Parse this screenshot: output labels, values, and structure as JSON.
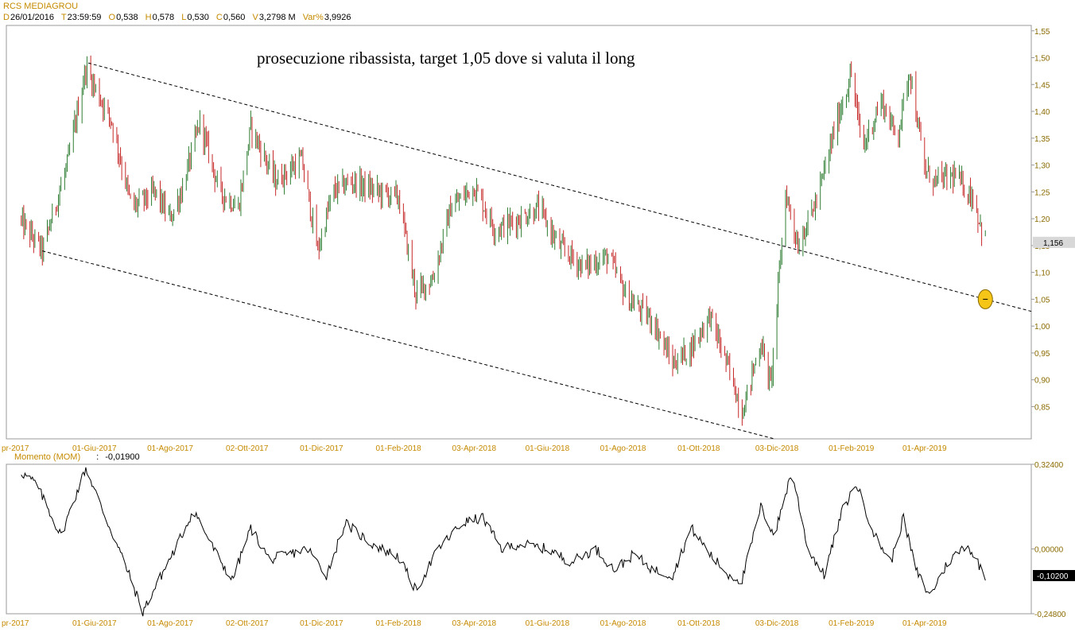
{
  "header": {
    "title": "RCS MEDIAGROU",
    "quote": [
      {
        "key": "D",
        "value": "26/01/2016"
      },
      {
        "key": "T",
        "value": "23:59:59"
      },
      {
        "key": "O",
        "value": "0,538"
      },
      {
        "key": "H",
        "value": "0,578"
      },
      {
        "key": "L",
        "value": "0,530"
      },
      {
        "key": "C",
        "value": "0,560"
      },
      {
        "key": "V",
        "value": "3,2798 M"
      },
      {
        "key": "Var%",
        "value": "3,9926"
      }
    ]
  },
  "momentum": {
    "name": "Momento (MOM)",
    "separator": ":",
    "value": "-0,01900"
  },
  "colors": {
    "up_bar": "#2e7d32",
    "down_bar": "#c62828",
    "axis_text": "#8a6a00",
    "date_text": "#c58a00",
    "target_marker": "#f5c518"
  },
  "chart_data": [
    {
      "type": "ohlc",
      "title": "",
      "annotation": "prosecuzione ribassista, target 1,05 dove si valuta il long",
      "x_tick_labels": [
        "pr-2017",
        "01-Giu-2017",
        "01-Ago-2017",
        "02-Ott-2017",
        "01-Dic-2017",
        "01-Feb-2018",
        "03-Apr-2018",
        "01-Giu-2018",
        "01-Ago-2018",
        "01-Ott-2018",
        "03-Dic-2018",
        "01-Feb-2019",
        "01-Apr-2019"
      ],
      "y_tick_labels": [
        "1,55",
        "1,50",
        "1,45",
        "1,40",
        "1,35",
        "1,30",
        "1,25",
        "1,20",
        "1,15",
        "1,10",
        "1,05",
        "1,00",
        "0,95",
        "0,90",
        "0,85"
      ],
      "ylim": [
        0.79,
        1.56
      ],
      "last_value_label": "1,156",
      "closes_approx": {
        "dates": [
          "2017-04-01",
          "2017-04-20",
          "2017-05-10",
          "2017-05-25",
          "2017-06-15",
          "2017-07-01",
          "2017-07-20",
          "2017-08-01",
          "2017-08-10",
          "2017-08-25",
          "2017-09-10",
          "2017-09-25",
          "2017-10-05",
          "2017-10-25",
          "2017-11-15",
          "2017-11-28",
          "2017-12-10",
          "2017-12-25",
          "2018-01-15",
          "2018-02-01",
          "2018-02-15",
          "2018-03-01",
          "2018-03-15",
          "2018-04-03",
          "2018-04-20",
          "2018-05-10",
          "2018-05-25",
          "2018-06-10",
          "2018-06-30",
          "2018-07-20",
          "2018-08-05",
          "2018-08-25",
          "2018-09-10",
          "2018-09-25",
          "2018-10-10",
          "2018-10-25",
          "2018-11-05",
          "2018-11-20",
          "2018-11-28",
          "2018-12-10",
          "2018-12-20",
          "2019-01-05",
          "2019-01-20",
          "2019-02-01",
          "2019-02-10",
          "2019-02-25",
          "2019-03-10",
          "2019-03-20",
          "2019-04-01",
          "2019-04-10",
          "2019-04-25",
          "2019-05-10",
          "2019-05-20"
        ],
        "values": [
          1.2,
          1.14,
          1.3,
          1.48,
          1.38,
          1.22,
          1.25,
          1.2,
          1.25,
          1.38,
          1.25,
          1.22,
          1.37,
          1.27,
          1.31,
          1.14,
          1.25,
          1.27,
          1.25,
          1.24,
          1.06,
          1.09,
          1.22,
          1.26,
          1.18,
          1.2,
          1.22,
          1.15,
          1.11,
          1.13,
          1.05,
          1.01,
          0.93,
          0.96,
          1.02,
          0.92,
          0.84,
          0.97,
          0.89,
          1.25,
          1.15,
          1.24,
          1.38,
          1.47,
          1.33,
          1.42,
          1.35,
          1.48,
          1.29,
          1.27,
          1.28,
          1.24,
          1.156
        ]
      },
      "trendlines": [
        {
          "name": "upper channel",
          "from": {
            "date": "2017-05-27",
            "value": 1.49
          },
          "to": {
            "date": "2019-05-20",
            "value": 1.05
          }
        },
        {
          "name": "lower channel",
          "from": {
            "date": "2017-04-20",
            "value": 1.14
          },
          "to": {
            "date": "2018-12-01",
            "value": 0.79
          }
        }
      ],
      "target_marker": {
        "date": "2019-05-20",
        "value": 1.05
      }
    },
    {
      "type": "line",
      "title": "",
      "series_name": "Momento (MOM)",
      "y_tick_labels": [
        "0,32400",
        "0,00000",
        "-0,24800"
      ],
      "ylim": [
        -0.248,
        0.324
      ],
      "last_value_label": "-0,10200",
      "x_tick_labels": [
        "pr-2017",
        "01-Giu-2017",
        "01-Ago-2017",
        "02-Ott-2017",
        "01-Dic-2017",
        "01-Feb-2018",
        "03-Apr-2018",
        "01-Giu-2018",
        "01-Ago-2018",
        "01-Ott-2018",
        "03-Dic-2018",
        "01-Feb-2019",
        "01-Apr-2019"
      ],
      "values_approx": {
        "dates": [
          "2017-04-01",
          "2017-04-15",
          "2017-05-05",
          "2017-05-25",
          "2017-06-10",
          "2017-06-25",
          "2017-07-10",
          "2017-07-25",
          "2017-08-05",
          "2017-08-20",
          "2017-09-05",
          "2017-09-20",
          "2017-10-05",
          "2017-10-20",
          "2017-11-05",
          "2017-11-20",
          "2017-12-05",
          "2017-12-20",
          "2018-01-10",
          "2018-02-01",
          "2018-02-15",
          "2018-03-05",
          "2018-03-25",
          "2018-04-10",
          "2018-04-25",
          "2018-05-10",
          "2018-06-01",
          "2018-06-20",
          "2018-07-10",
          "2018-07-25",
          "2018-08-10",
          "2018-08-25",
          "2018-09-10",
          "2018-09-25",
          "2018-10-10",
          "2018-10-25",
          "2018-11-05",
          "2018-11-20",
          "2018-12-01",
          "2018-12-15",
          "2018-12-28",
          "2019-01-10",
          "2019-01-25",
          "2019-02-05",
          "2019-02-20",
          "2019-03-05",
          "2019-03-15",
          "2019-03-25",
          "2019-04-05",
          "2019-04-20",
          "2019-05-05",
          "2019-05-20"
        ],
        "values": [
          0.3,
          0.25,
          0.05,
          0.31,
          0.12,
          -0.05,
          -0.24,
          -0.1,
          0.0,
          0.15,
          0.0,
          -0.12,
          0.08,
          -0.04,
          -0.02,
          0.0,
          -0.1,
          0.1,
          0.02,
          -0.03,
          -0.16,
          0.0,
          0.1,
          0.12,
          0.0,
          0.02,
          0.0,
          -0.05,
          0.0,
          -0.08,
          -0.02,
          -0.08,
          -0.1,
          0.08,
          -0.02,
          -0.1,
          -0.12,
          0.16,
          0.05,
          0.3,
          0.0,
          -0.1,
          0.15,
          0.25,
          0.05,
          -0.05,
          0.12,
          -0.08,
          -0.18,
          -0.05,
          0.02,
          -0.102
        ]
      }
    }
  ]
}
